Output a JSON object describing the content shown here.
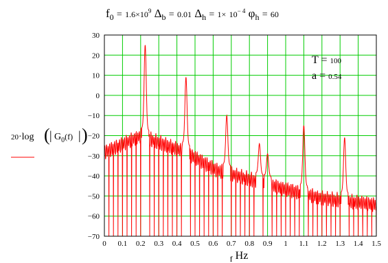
{
  "header": {
    "f0_symbol": "f",
    "f0_sub": "0",
    "f0_val": "1.6×",
    "f0_base": "10",
    "f0_exp": "9",
    "db_symbol": "Δ",
    "db_sub": "b",
    "db_val": "0.01",
    "dh_symbol": "Δ",
    "dh_sub": "h",
    "dh_val": "1×",
    "dh_base": "10",
    "dh_exp": "− 4",
    "ph_symbol": "φ",
    "ph_sub": "h",
    "ph_val": "60",
    "eq": "="
  },
  "annotations": {
    "t_label": "T",
    "t_val": "100",
    "a_label": "a",
    "a_val": "0.54",
    "eq": "="
  },
  "ylabel": {
    "coef": "20",
    "dot": "·",
    "fn": "log",
    "G": "G",
    "sub": "0",
    "arg": "(f)"
  },
  "xlabel": {
    "var": "f",
    "unit": "Hz"
  },
  "colors": {
    "grid": "#00cc00",
    "trace": "#ff0000",
    "frame": "#000000"
  },
  "chart_data": {
    "type": "line",
    "x_ticks": [
      "0",
      "0.1",
      "0.2",
      "0.3",
      "0.4",
      "0.5",
      "0.6",
      "0.7",
      "0.8",
      "0.9",
      "1",
      "1.1",
      "1.2",
      "1.3",
      "1.4",
      "1.5"
    ],
    "y_ticks": [
      "30",
      "20",
      "10",
      "0",
      "−10",
      "−20",
      "−30",
      "−40",
      "−50",
      "−60",
      "−70"
    ],
    "xlim": [
      0,
      1.5
    ],
    "ylim": [
      -70,
      30
    ],
    "grid": true,
    "series": [
      {
        "peaks": [
          {
            "x": 0.225,
            "y": 25
          },
          {
            "x": 0.45,
            "y": 9
          },
          {
            "x": 0.675,
            "y": -10
          },
          {
            "x": 0.855,
            "y": -24
          },
          {
            "x": 0.9,
            "y": -29
          },
          {
            "x": 1.1,
            "y": -15
          },
          {
            "x": 1.325,
            "y": -21
          }
        ],
        "floor": [
          {
            "x": 0.0,
            "y": -24
          },
          {
            "x": 0.2,
            "y": -16
          },
          {
            "x": 0.45,
            "y": -24
          },
          {
            "x": 0.62,
            "y": -33
          },
          {
            "x": 0.9,
            "y": -40
          },
          {
            "x": 1.2,
            "y": -47
          },
          {
            "x": 1.5,
            "y": -50
          }
        ]
      }
    ]
  }
}
